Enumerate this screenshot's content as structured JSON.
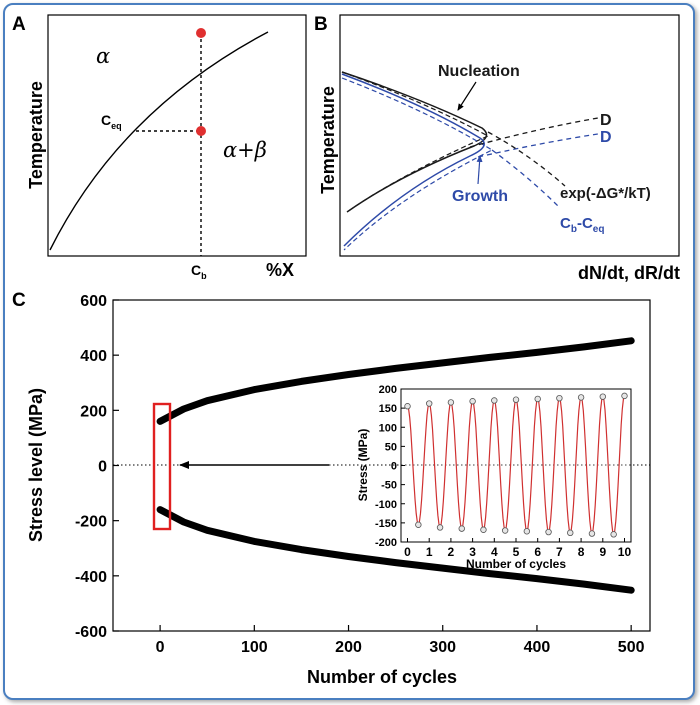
{
  "panel_a": {
    "letter": "A",
    "alpha_label": "α",
    "alpha_beta_label": "α+β",
    "ylabel": "Temperature",
    "xlabel": "%X",
    "ceq_main": "C",
    "ceq_sub": "eq",
    "cb_main": "C",
    "cb_sub": "b"
  },
  "panel_b": {
    "letter": "B",
    "ylabel": "Temperature",
    "xlabel": "dN/dt, dR/dt",
    "nucleation": "Nucleation",
    "growth": "Growth",
    "d_black": "D",
    "d_blue": "D",
    "exp_term": "exp(-ΔG*/kT)",
    "cb_ceq_c1": "C",
    "cb_ceq_s1": "b",
    "cb_ceq_mid": "-C",
    "cb_ceq_s2": "eq",
    "colors": {
      "black": "#1a1a1a",
      "blue": "#2e4aa8",
      "red": "#e03030"
    }
  },
  "panel_c": {
    "letter": "C",
    "chart_data": [
      {
        "type": "line",
        "title": "",
        "xlabel": "Number of cycles",
        "ylabel": "Stress level (MPa)",
        "xlim": [
          -50,
          520
        ],
        "ylim": [
          -600,
          600
        ],
        "xticks": [
          0,
          100,
          200,
          300,
          400,
          500
        ],
        "yticks": [
          -600,
          -400,
          -200,
          0,
          200,
          400,
          600
        ],
        "series": [
          {
            "name": "upper envelope",
            "x": [
              0,
              25,
              50,
              100,
              150,
              200,
              250,
              300,
              350,
              400,
              450,
              500
            ],
            "values": [
              160,
              205,
              235,
              275,
              305,
              330,
              352,
              372,
              392,
              410,
              430,
              452
            ]
          },
          {
            "name": "lower envelope",
            "x": [
              0,
              25,
              50,
              100,
              150,
              200,
              250,
              300,
              350,
              400,
              450,
              500
            ],
            "values": [
              -160,
              -205,
              -235,
              -275,
              -305,
              -330,
              -352,
              -372,
              -392,
              -410,
              -430,
              -452
            ]
          }
        ]
      },
      {
        "type": "line",
        "title": "",
        "xlabel": "Number of cycles",
        "ylabel": "Stress (MPa)",
        "xlim": [
          -0.3,
          10.3
        ],
        "ylim": [
          -200,
          200
        ],
        "xticks": [
          0,
          1,
          2,
          3,
          4,
          5,
          6,
          7,
          8,
          9,
          10
        ],
        "yticks": [
          -200,
          -150,
          -100,
          -50,
          0,
          50,
          100,
          150,
          200
        ],
        "series": [
          {
            "name": "measured peaks",
            "x": [
              0,
              0.5,
              1,
              1.5,
              2,
              2.5,
              3,
              3.5,
              4,
              4.5,
              5,
              5.5,
              6,
              6.5,
              7,
              7.5,
              8,
              8.5,
              9,
              9.5,
              10
            ],
            "values": [
              155,
              -155,
              162,
              -162,
              165,
              -165,
              168,
              -168,
              170,
              -170,
              172,
              -172,
              174,
              -174,
              176,
              -176,
              178,
              -178,
              180,
              -180,
              182
            ]
          }
        ]
      }
    ]
  }
}
